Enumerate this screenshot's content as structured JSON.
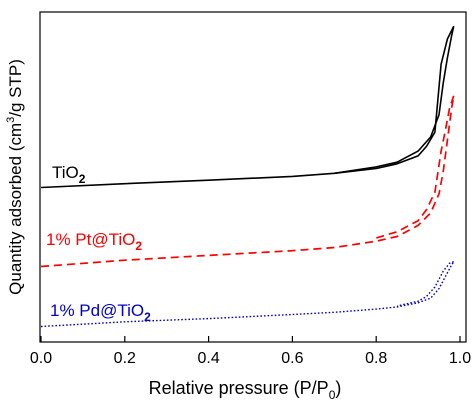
{
  "chart_data": {
    "type": "line",
    "title": "",
    "xlabel": "Relative pressure (P/P",
    "xlabel_sub": "0",
    "xlabel_end": ")",
    "ylabel_pre": "Quantity adsorbed (cm",
    "ylabel_sup": "3",
    "ylabel_post": "/g STP)",
    "xlim": [
      0.0,
      1.0
    ],
    "xticks": [
      "0.0",
      "0.2",
      "0.4",
      "0.6",
      "0.8",
      "1.0"
    ],
    "xtick_values": [
      0.0,
      0.2,
      0.4,
      0.6,
      0.8,
      1.0
    ],
    "ylim": [
      0,
      100
    ],
    "y_ticks_shown": false,
    "grid": false,
    "legend": "inline labels left of curves",
    "series": [
      {
        "name": "TiO",
        "sub": "2",
        "name_suffix": "",
        "color": "#000000",
        "style": "solid",
        "adsorption": [
          [
            0.0,
            47.0
          ],
          [
            0.2,
            48.2
          ],
          [
            0.4,
            49.3
          ],
          [
            0.6,
            50.5
          ],
          [
            0.7,
            51.5
          ],
          [
            0.8,
            53.5
          ],
          [
            0.85,
            55.0
          ],
          [
            0.9,
            58.5
          ],
          [
            0.93,
            63.0
          ],
          [
            0.95,
            70.0
          ],
          [
            0.96,
            80.0
          ],
          [
            0.97,
            88.0
          ],
          [
            0.98,
            95.0
          ],
          [
            0.985,
            98.0
          ]
        ],
        "desorption": [
          [
            0.985,
            98.0
          ],
          [
            0.97,
            94.0
          ],
          [
            0.955,
            86.0
          ],
          [
            0.94,
            64.5
          ],
          [
            0.92,
            60.0
          ],
          [
            0.9,
            57.0
          ],
          [
            0.85,
            54.5
          ],
          [
            0.8,
            53.0
          ],
          [
            0.7,
            51.5
          ]
        ]
      },
      {
        "name": "1% Pt@TiO",
        "sub": "2",
        "name_suffix": "",
        "color": "#ff0000",
        "style": "dashed",
        "adsorption": [
          [
            0.0,
            22.0
          ],
          [
            0.2,
            24.0
          ],
          [
            0.4,
            25.5
          ],
          [
            0.6,
            27.0
          ],
          [
            0.7,
            28.0
          ],
          [
            0.8,
            30.0
          ],
          [
            0.85,
            31.5
          ],
          [
            0.9,
            35.0
          ],
          [
            0.93,
            39.0
          ],
          [
            0.95,
            45.0
          ],
          [
            0.96,
            52.0
          ],
          [
            0.97,
            62.0
          ],
          [
            0.98,
            72.0
          ],
          [
            0.985,
            76.0
          ]
        ],
        "desorption": [
          [
            0.985,
            76.0
          ],
          [
            0.975,
            72.0
          ],
          [
            0.965,
            65.0
          ],
          [
            0.955,
            58.5
          ],
          [
            0.94,
            45.5
          ],
          [
            0.92,
            40.0
          ],
          [
            0.9,
            36.5
          ],
          [
            0.85,
            33.0
          ],
          [
            0.8,
            31.0
          ]
        ]
      },
      {
        "name": "1% Pd@TiO",
        "sub": "2",
        "name_suffix": "",
        "color": "#0000cc",
        "style": "dotted",
        "adsorption": [
          [
            0.0,
            3.0
          ],
          [
            0.2,
            4.5
          ],
          [
            0.4,
            5.5
          ],
          [
            0.6,
            6.8
          ],
          [
            0.7,
            7.5
          ],
          [
            0.8,
            8.5
          ],
          [
            0.85,
            9.2
          ],
          [
            0.9,
            10.5
          ],
          [
            0.93,
            12.0
          ],
          [
            0.95,
            15.0
          ],
          [
            0.97,
            20.0
          ],
          [
            0.98,
            22.5
          ],
          [
            0.985,
            23.5
          ]
        ],
        "desorption": [
          [
            0.985,
            23.5
          ],
          [
            0.975,
            23.0
          ],
          [
            0.96,
            20.5
          ],
          [
            0.94,
            15.5
          ],
          [
            0.92,
            12.5
          ],
          [
            0.9,
            11.0
          ],
          [
            0.85,
            9.5
          ]
        ]
      }
    ]
  }
}
